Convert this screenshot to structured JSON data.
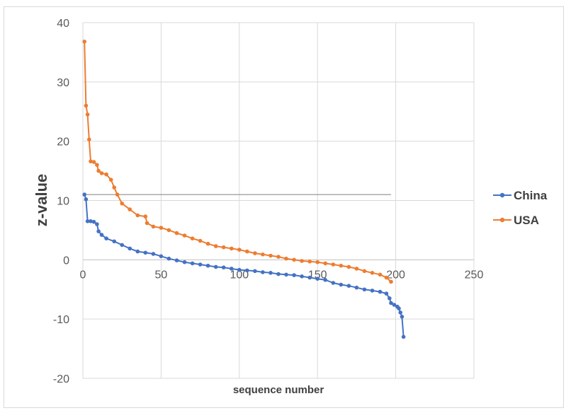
{
  "chart_data": {
    "type": "line",
    "title": "",
    "xlabel": "sequence number",
    "ylabel": "z-value",
    "xlim": [
      0,
      250
    ],
    "ylim": [
      -20,
      40
    ],
    "x_ticks": [
      "0",
      "50",
      "100",
      "150",
      "200",
      "250"
    ],
    "y_ticks": [
      "-20",
      "-10",
      "0",
      "10",
      "20",
      "30",
      "40"
    ],
    "grid": true,
    "legend_position": "right",
    "reference_line": {
      "x_start": 0,
      "x_end": 197,
      "y": 11
    },
    "series": [
      {
        "name": "China",
        "color": "#4472C4",
        "marker": "circle",
        "points": [
          [
            1,
            11.0
          ],
          [
            2,
            10.2
          ],
          [
            3,
            6.5
          ],
          [
            5,
            6.5
          ],
          [
            7,
            6.4
          ],
          [
            9,
            6.0
          ],
          [
            10,
            4.8
          ],
          [
            12,
            4.2
          ],
          [
            15,
            3.6
          ],
          [
            20,
            3.1
          ],
          [
            25,
            2.5
          ],
          [
            30,
            1.9
          ],
          [
            35,
            1.4
          ],
          [
            40,
            1.2
          ],
          [
            45,
            1.0
          ],
          [
            50,
            0.6
          ],
          [
            55,
            0.2
          ],
          [
            60,
            -0.1
          ],
          [
            65,
            -0.4
          ],
          [
            70,
            -0.6
          ],
          [
            75,
            -0.8
          ],
          [
            80,
            -1.0
          ],
          [
            85,
            -1.2
          ],
          [
            90,
            -1.3
          ],
          [
            95,
            -1.5
          ],
          [
            100,
            -1.7
          ],
          [
            105,
            -1.8
          ],
          [
            110,
            -1.9
          ],
          [
            115,
            -2.1
          ],
          [
            120,
            -2.2
          ],
          [
            125,
            -2.4
          ],
          [
            130,
            -2.5
          ],
          [
            135,
            -2.6
          ],
          [
            140,
            -2.8
          ],
          [
            145,
            -3.0
          ],
          [
            150,
            -3.2
          ],
          [
            155,
            -3.4
          ],
          [
            160,
            -3.9
          ],
          [
            165,
            -4.2
          ],
          [
            170,
            -4.4
          ],
          [
            175,
            -4.7
          ],
          [
            180,
            -5.0
          ],
          [
            185,
            -5.2
          ],
          [
            190,
            -5.4
          ],
          [
            194,
            -5.7
          ],
          [
            196,
            -6.5
          ],
          [
            197,
            -7.3
          ],
          [
            199,
            -7.6
          ],
          [
            201,
            -7.9
          ],
          [
            202,
            -8.2
          ],
          [
            203,
            -8.9
          ],
          [
            204,
            -9.6
          ],
          [
            205,
            -13.0
          ]
        ]
      },
      {
        "name": "USA",
        "color": "#ED7D31",
        "marker": "circle",
        "points": [
          [
            1,
            36.8
          ],
          [
            2,
            26.0
          ],
          [
            3,
            24.5
          ],
          [
            4,
            20.3
          ],
          [
            5,
            16.6
          ],
          [
            7,
            16.5
          ],
          [
            9,
            16.0
          ],
          [
            10,
            15.0
          ],
          [
            12,
            14.6
          ],
          [
            15,
            14.4
          ],
          [
            18,
            13.5
          ],
          [
            20,
            12.2
          ],
          [
            22,
            11.0
          ],
          [
            25,
            9.5
          ],
          [
            30,
            8.5
          ],
          [
            35,
            7.5
          ],
          [
            40,
            7.3
          ],
          [
            41,
            6.2
          ],
          [
            45,
            5.6
          ],
          [
            50,
            5.4
          ],
          [
            55,
            5.0
          ],
          [
            60,
            4.5
          ],
          [
            65,
            4.1
          ],
          [
            70,
            3.6
          ],
          [
            75,
            3.2
          ],
          [
            80,
            2.7
          ],
          [
            85,
            2.3
          ],
          [
            90,
            2.1
          ],
          [
            95,
            1.9
          ],
          [
            100,
            1.7
          ],
          [
            105,
            1.4
          ],
          [
            110,
            1.1
          ],
          [
            115,
            0.9
          ],
          [
            120,
            0.7
          ],
          [
            125,
            0.5
          ],
          [
            130,
            0.2
          ],
          [
            135,
            0.0
          ],
          [
            140,
            -0.2
          ],
          [
            145,
            -0.3
          ],
          [
            150,
            -0.4
          ],
          [
            155,
            -0.6
          ],
          [
            160,
            -0.8
          ],
          [
            165,
            -1.0
          ],
          [
            170,
            -1.2
          ],
          [
            175,
            -1.5
          ],
          [
            180,
            -1.9
          ],
          [
            185,
            -2.2
          ],
          [
            190,
            -2.5
          ],
          [
            194,
            -3.0
          ],
          [
            197,
            -3.7
          ]
        ]
      }
    ]
  }
}
